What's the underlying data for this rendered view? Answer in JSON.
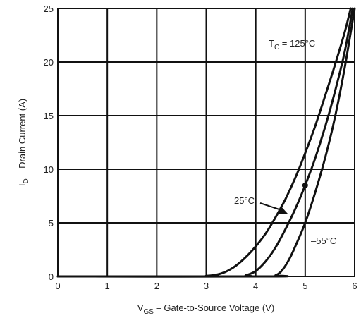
{
  "chart_data": {
    "type": "line",
    "xlabel": {
      "main": "V",
      "sub": "GS",
      "rest": " – Gate-to-Source Voltage (V)"
    },
    "ylabel": {
      "main": "I",
      "sub": "D",
      "rest": " – Drain Current (A)"
    },
    "xlim": [
      0,
      6
    ],
    "ylim": [
      0,
      25
    ],
    "x_ticks": [
      "0",
      "1",
      "2",
      "3",
      "4",
      "5",
      "6"
    ],
    "y_ticks": [
      "0",
      "5",
      "10",
      "15",
      "20",
      "25"
    ],
    "grid": true,
    "series": [
      {
        "name": "125°C",
        "x": [
          0,
          2.8,
          3.0,
          3.2,
          3.4,
          3.6,
          3.8,
          4.0,
          4.2,
          4.4,
          4.6,
          4.8,
          5.0,
          5.2,
          5.4,
          5.6,
          5.8,
          5.92
        ],
        "y": [
          0,
          0,
          0.05,
          0.15,
          0.45,
          1.0,
          1.8,
          2.8,
          4.0,
          5.5,
          7.2,
          9.2,
          11.5,
          14.0,
          16.8,
          19.7,
          22.8,
          25
        ]
      },
      {
        "name": "25°C",
        "x": [
          0,
          3.6,
          3.8,
          4.0,
          4.2,
          4.4,
          4.6,
          4.8,
          5.0,
          5.2,
          5.4,
          5.6,
          5.8,
          5.96
        ],
        "y": [
          0,
          0,
          0.1,
          0.5,
          1.4,
          2.7,
          4.4,
          6.3,
          8.5,
          11.0,
          13.9,
          17.2,
          21.0,
          25
        ]
      },
      {
        "name": "−55°C",
        "x": [
          0,
          4.3,
          4.4,
          4.5,
          4.6,
          4.7,
          4.8,
          5.0,
          5.2,
          5.4,
          5.6,
          5.8,
          6.0
        ],
        "y": [
          0,
          0,
          0.1,
          0.4,
          1.0,
          1.8,
          2.8,
          5.0,
          7.8,
          11.0,
          14.8,
          19.5,
          25
        ]
      }
    ],
    "marker_point": {
      "x": 5.0,
      "y": 8.5
    },
    "annotations": {
      "tc_prefix": "T",
      "tc_sub": "C",
      "tc_rest": " = 125°C",
      "label_25": "25°C",
      "label_m55": "–55°C"
    }
  }
}
